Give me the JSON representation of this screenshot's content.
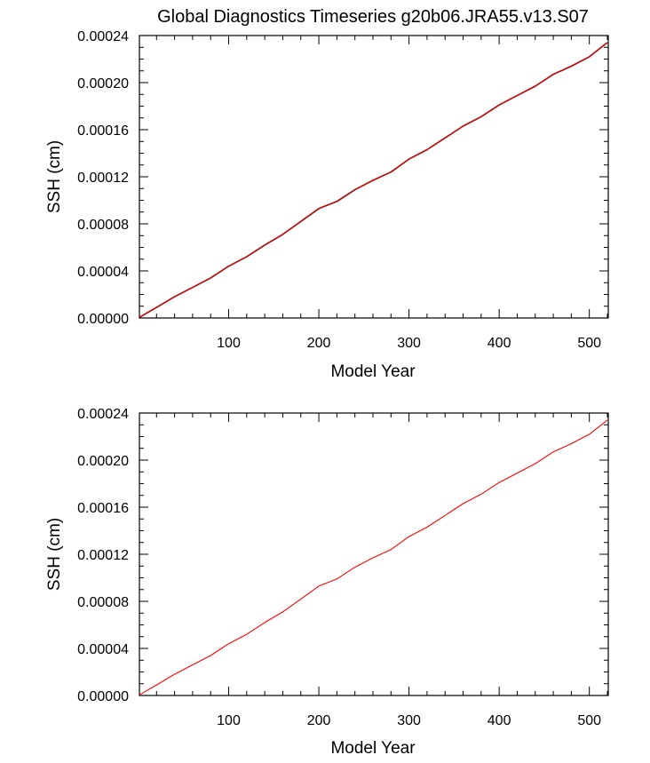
{
  "title": "Global Diagnostics Timeseries g20b06.JRA55.v13.S07",
  "chart_data": [
    {
      "type": "line",
      "xlabel": "Model Year",
      "ylabel": "SSH (cm)",
      "xlim": [
        1,
        521
      ],
      "ylim": [
        0,
        0.00024
      ],
      "xticks": [
        "100",
        "200",
        "300",
        "400",
        "500"
      ],
      "yticks": [
        "0.00000",
        "0.00004",
        "0.00008",
        "0.00012",
        "0.00016",
        "0.00020",
        "0.00024"
      ],
      "series": [
        {
          "color": "#000000",
          "x": [
            1,
            20,
            40,
            60,
            80,
            100,
            120,
            140,
            160,
            180,
            200,
            220,
            240,
            260,
            280,
            300,
            320,
            340,
            360,
            380,
            400,
            420,
            440,
            460,
            480,
            500,
            520
          ],
          "values": [
            5e-07,
            9e-06,
            1.8e-05,
            2.6e-05,
            3.4e-05,
            4.4e-05,
            5.2e-05,
            6.2e-05,
            7.1e-05,
            8.2e-05,
            9.3e-05,
            9.9e-05,
            0.000109,
            0.000117,
            0.000124,
            0.000135,
            0.000143,
            0.000153,
            0.000163,
            0.000171,
            0.000181,
            0.000189,
            0.000197,
            0.000207,
            0.000214,
            0.000222,
            0.000234
          ]
        },
        {
          "color": "#ff0000",
          "x": [
            1,
            20,
            40,
            60,
            80,
            100,
            120,
            140,
            160,
            180,
            200,
            220,
            240,
            260,
            280,
            300,
            320,
            340,
            360,
            380,
            400,
            420,
            440,
            460,
            480,
            500,
            520
          ],
          "values": [
            5e-07,
            9e-06,
            1.8e-05,
            2.6e-05,
            3.4e-05,
            4.4e-05,
            5.2e-05,
            6.2e-05,
            7.1e-05,
            8.2e-05,
            9.3e-05,
            9.9e-05,
            0.000109,
            0.000117,
            0.000124,
            0.000135,
            0.000143,
            0.000153,
            0.000163,
            0.000171,
            0.000181,
            0.000189,
            0.000197,
            0.000207,
            0.000214,
            0.000222,
            0.000234
          ]
        }
      ]
    },
    {
      "type": "line",
      "xlabel": "Model Year",
      "ylabel": "SSH (cm)",
      "xlim": [
        1,
        521
      ],
      "ylim": [
        0,
        0.00024
      ],
      "xticks": [
        "100",
        "200",
        "300",
        "400",
        "500"
      ],
      "yticks": [
        "0.00000",
        "0.00004",
        "0.00008",
        "0.00012",
        "0.00016",
        "0.00020",
        "0.00024"
      ],
      "series": [
        {
          "color": "#ff0000",
          "x": [
            1,
            20,
            40,
            60,
            80,
            100,
            120,
            140,
            160,
            180,
            200,
            220,
            240,
            260,
            280,
            300,
            320,
            340,
            360,
            380,
            400,
            420,
            440,
            460,
            480,
            500,
            520
          ],
          "values": [
            5e-07,
            9e-06,
            1.8e-05,
            2.6e-05,
            3.4e-05,
            4.4e-05,
            5.2e-05,
            6.2e-05,
            7.1e-05,
            8.2e-05,
            9.3e-05,
            9.9e-05,
            0.000109,
            0.000117,
            0.000124,
            0.000135,
            0.000143,
            0.000153,
            0.000163,
            0.000171,
            0.000181,
            0.000189,
            0.000197,
            0.000207,
            0.000214,
            0.000222,
            0.000234
          ]
        }
      ]
    }
  ]
}
